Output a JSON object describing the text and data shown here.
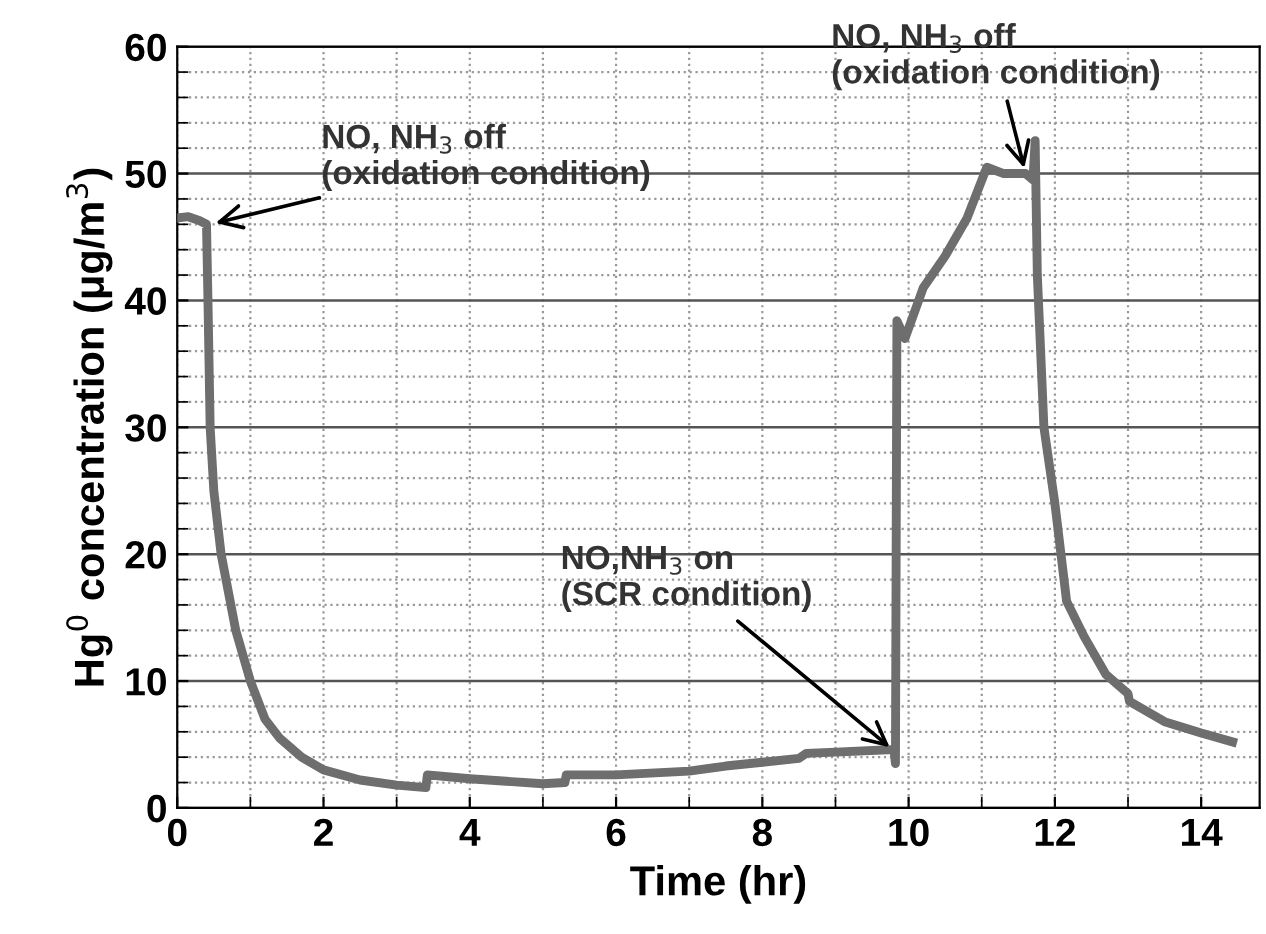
{
  "chart_data": {
    "type": "line",
    "xlabel": "Time (hr)",
    "ylabel": "Hg$^{0}$ concentration (μg/m$^{3}$)",
    "xlim": [
      0,
      14.8
    ],
    "xticks": [
      0,
      2,
      4,
      6,
      8,
      10,
      12,
      14
    ],
    "ylim": [
      0,
      60
    ],
    "yticks": [
      0,
      10,
      20,
      30,
      40,
      50,
      60
    ],
    "grid": true,
    "marker": "none",
    "line_style": "solid",
    "series": [
      {
        "color": "#6e6e6e",
        "x": [
          0,
          0.15,
          0.3,
          0.4,
          0.42,
          0.45,
          0.5,
          0.6,
          0.8,
          1.0,
          1.2,
          1.4,
          1.7,
          2.0,
          2.5,
          3.0,
          3.4,
          3.42,
          4.0,
          4.5,
          5.0,
          5.3,
          5.32,
          6.0,
          7.0,
          7.5,
          8.0,
          8.5,
          8.6,
          9.0,
          9.8,
          9.82,
          9.84,
          9.95,
          10.2,
          10.5,
          10.8,
          11.07,
          11.3,
          11.6,
          11.7,
          11.73,
          11.76,
          11.85,
          12.0,
          12.16,
          12.4,
          12.7,
          13.0,
          13.02,
          13.5,
          14.0,
          14.43
        ],
        "values": [
          46.5,
          46.6,
          46.3,
          46,
          40,
          30,
          25,
          20,
          14,
          10,
          7,
          5.5,
          4,
          3,
          2.2,
          1.8,
          1.6,
          2.6,
          2.3,
          2.1,
          1.9,
          2,
          2.6,
          2.6,
          2.9,
          3.3,
          3.6,
          3.9,
          4.3,
          4.4,
          4.6,
          3.5,
          38.4,
          37,
          41,
          43.5,
          46.5,
          50.5,
          50,
          50,
          49.5,
          52.6,
          42,
          30,
          24,
          16.3,
          13.5,
          10.5,
          9,
          8.4,
          6.8,
          5.9,
          5.2
        ]
      }
    ],
    "annotations": [
      {
        "text": "NO, NH$_{3}$ off\n(oxidation condition)",
        "x": 0.45,
        "y": 46
      },
      {
        "text": "NO,NH$_{3}$ on\n(SCR condition)",
        "x": 9.8,
        "y": 4.5
      },
      {
        "text": "NO, NH$_{3}$ off\n(oxidation condition)",
        "x": 11.6,
        "y": 50
      }
    ]
  }
}
